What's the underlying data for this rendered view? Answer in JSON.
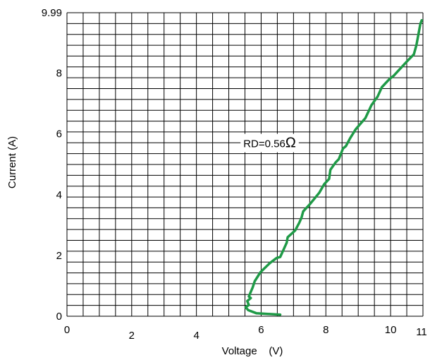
{
  "chart_data": {
    "type": "line",
    "xlabel": "Voltage    (V)",
    "ylabel": "Current (A)",
    "xlim": [
      0,
      11
    ],
    "ylim": [
      0,
      9.99
    ],
    "grid": true,
    "x_tick_labels": [
      {
        "value": 0,
        "label": "0"
      },
      {
        "value": 2,
        "label": "2"
      },
      {
        "value": 4,
        "label": "4"
      },
      {
        "value": 6,
        "label": "6"
      },
      {
        "value": 8,
        "label": "8"
      },
      {
        "value": 10,
        "label": "10"
      },
      {
        "value": 11,
        "label": "11"
      }
    ],
    "y_tick_labels": [
      {
        "value": 0,
        "label": "0"
      },
      {
        "value": 2,
        "label": "2"
      },
      {
        "value": 4,
        "label": "4"
      },
      {
        "value": 6,
        "label": "6"
      },
      {
        "value": 8,
        "label": "8"
      },
      {
        "value": 9.99,
        "label": "9.99"
      }
    ],
    "annotation": {
      "prefix": "RD=0.56",
      "symbol": "Ω",
      "x": 5.45,
      "y": 5.7
    },
    "series": [
      {
        "color": "#1f9a47",
        "x": [
          6.59,
          5.85,
          5.6,
          5.52,
          5.62,
          5.57,
          5.68,
          5.62,
          5.74,
          5.8,
          5.98,
          6.27,
          6.48,
          6.59,
          6.79,
          6.82,
          7.05,
          7.18,
          7.25,
          7.3,
          7.5,
          7.8,
          7.95,
          8.1,
          8.14,
          8.3,
          8.4,
          8.53,
          8.62,
          8.75,
          8.92,
          9.08,
          9.22,
          9.41,
          9.6,
          9.73,
          9.95,
          10.1,
          10.5,
          10.72,
          10.8,
          10.92,
          10.96
        ],
        "y": [
          0.05,
          0.1,
          0.2,
          0.3,
          0.37,
          0.5,
          0.6,
          0.65,
          0.95,
          1.15,
          1.45,
          1.75,
          1.92,
          1.95,
          2.42,
          2.6,
          2.82,
          3.08,
          3.25,
          3.45,
          3.68,
          4.07,
          4.35,
          4.52,
          4.82,
          5.06,
          5.17,
          5.52,
          5.6,
          5.86,
          6.15,
          6.35,
          6.52,
          6.95,
          7.23,
          7.54,
          7.79,
          7.92,
          8.38,
          8.62,
          8.93,
          9.62,
          9.74
        ]
      }
    ]
  }
}
